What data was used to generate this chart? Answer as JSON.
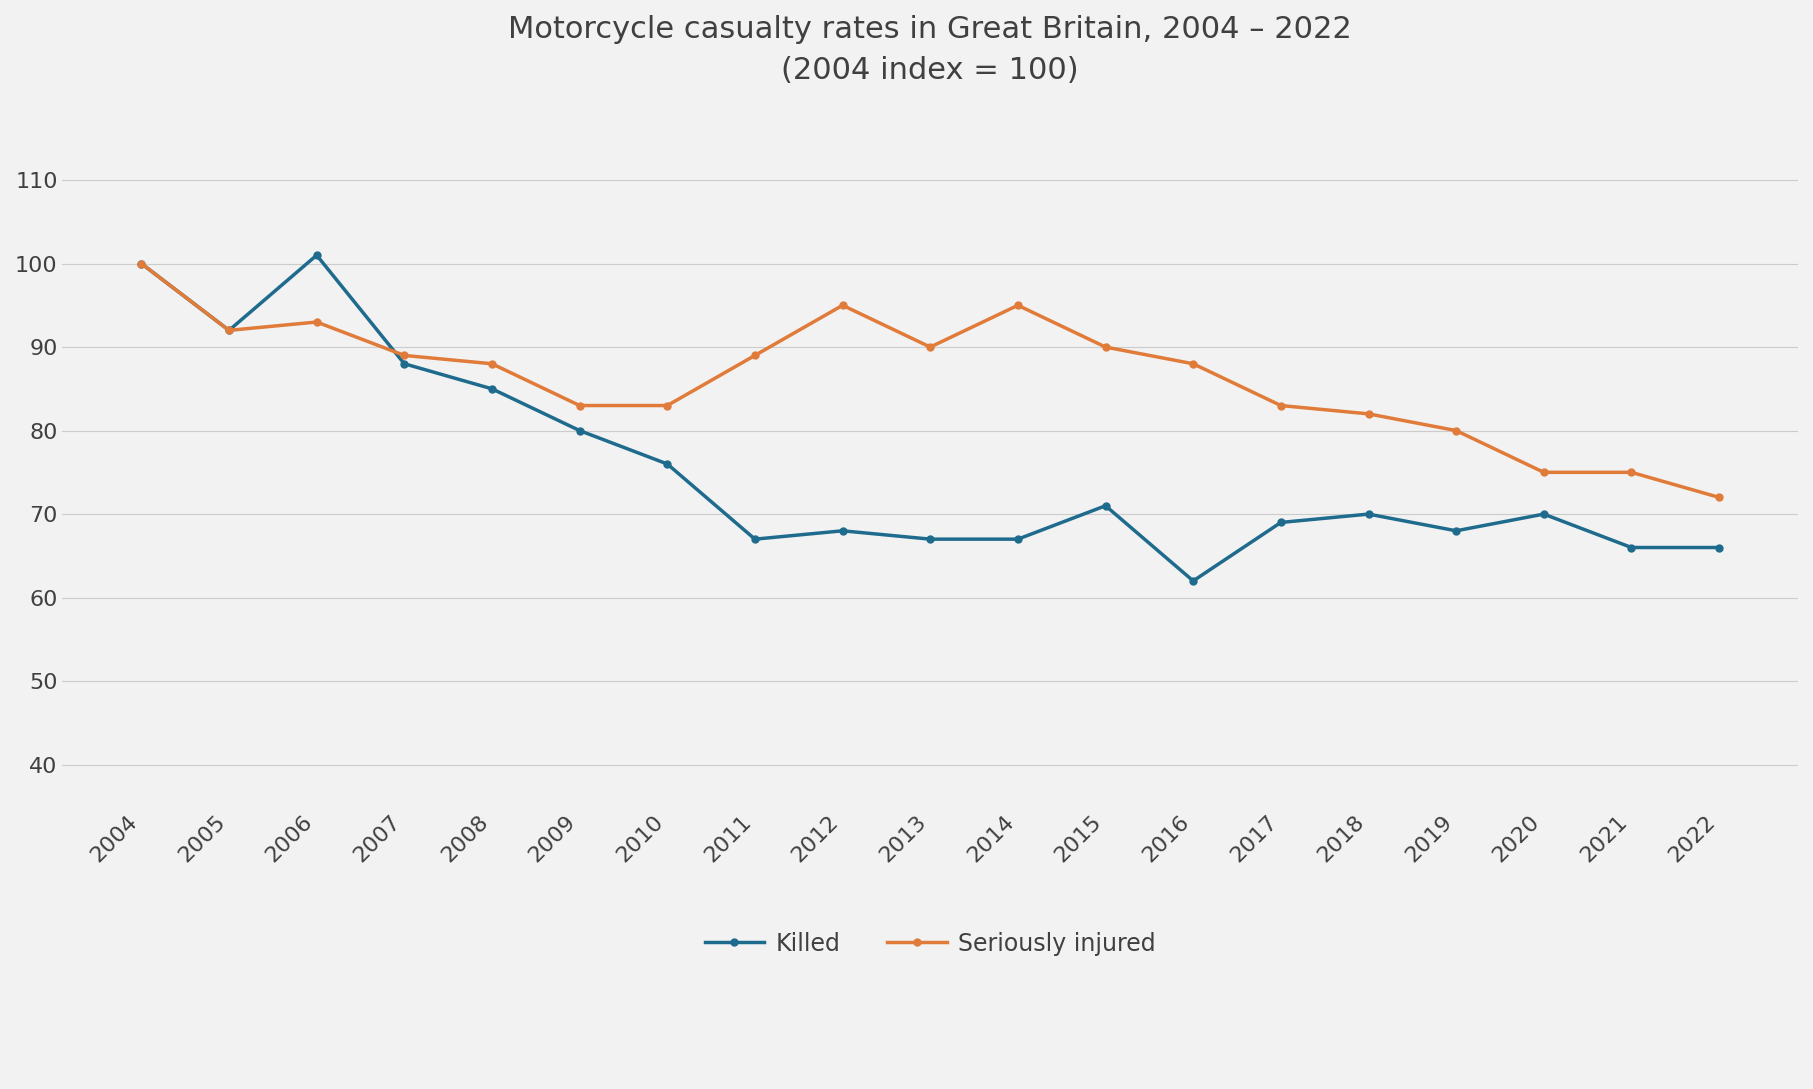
{
  "title_line1": "Motorcycle casualty rates in Great Britain, 2004 – 2022",
  "title_line2": "(2004 index = 100)",
  "years": [
    2004,
    2005,
    2006,
    2007,
    2008,
    2009,
    2010,
    2011,
    2012,
    2013,
    2014,
    2015,
    2016,
    2017,
    2018,
    2019,
    2020,
    2021,
    2022
  ],
  "killed": [
    100,
    92,
    101,
    88,
    85,
    80,
    76,
    67,
    68,
    67,
    67,
    71,
    62,
    69,
    70,
    68,
    70,
    66,
    66
  ],
  "seriously_injured": [
    100,
    92,
    93,
    89,
    88,
    83,
    83,
    89,
    95,
    90,
    95,
    90,
    88,
    83,
    82,
    80,
    75,
    75,
    72
  ],
  "killed_color": "#1f6b8e",
  "seriously_injured_color": "#e07b3a",
  "background_color": "#f2f2f2",
  "ylim": [
    35,
    118
  ],
  "yticks": [
    40,
    50,
    60,
    70,
    80,
    90,
    100,
    110
  ],
  "grid_color": "#cccccc",
  "title_color": "#404040",
  "title_fontsize": 22,
  "tick_fontsize": 16,
  "legend_fontsize": 17,
  "line_width": 2.5,
  "legend_labels": [
    "Killed",
    "Seriously injured"
  ]
}
